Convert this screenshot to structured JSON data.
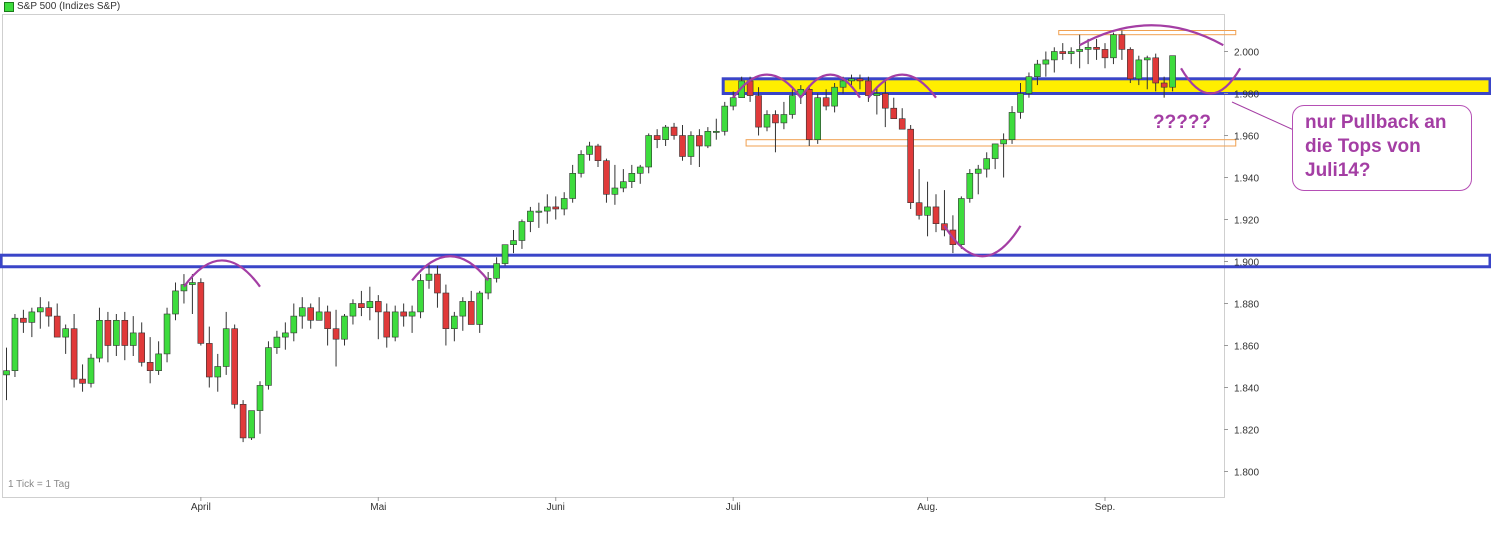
{
  "header": {
    "legend_label": "S&P 500 (Indizes S&P)"
  },
  "footer": {
    "tick_note": "1 Tick = 1 Tag"
  },
  "annotations": {
    "callout_text": "nur Pullback an die Tops von Juli14?",
    "question_marks": "?????"
  },
  "colors": {
    "up_candle": "#3ddc3d",
    "down_candle": "#e03a3a",
    "support_box": "#3a45c8",
    "highlight_fill": "#ffee00",
    "pattern_arc": "#a43ea4",
    "thin_zone": "#f0a050"
  },
  "chart_data": {
    "type": "candlestick",
    "title": "S&P 500 (Indizes S&P)",
    "ylim": [
      1795,
      2015
    ],
    "grid": false,
    "y_ticks": [
      {
        "value": 2000,
        "label": "2.000"
      },
      {
        "value": 1980,
        "label": "1.980"
      },
      {
        "value": 1960,
        "label": "1.960"
      },
      {
        "value": 1940,
        "label": "1.940"
      },
      {
        "value": 1920,
        "label": "1.920"
      },
      {
        "value": 1900,
        "label": "1.900"
      },
      {
        "value": 1880,
        "label": "1.880"
      },
      {
        "value": 1860,
        "label": "1.860"
      },
      {
        "value": 1840,
        "label": "1.840"
      },
      {
        "value": 1820,
        "label": "1.820"
      },
      {
        "value": 1800,
        "label": "1.800"
      }
    ],
    "x_ticks": [
      {
        "index": 23,
        "label": "April"
      },
      {
        "index": 44,
        "label": "Mai"
      },
      {
        "index": 65,
        "label": "Juni"
      },
      {
        "index": 86,
        "label": "Juli"
      },
      {
        "index": 109,
        "label": "Aug."
      },
      {
        "index": 130,
        "label": "Sep."
      }
    ],
    "candles": [
      [
        1846,
        1859,
        1834,
        1848
      ],
      [
        1848,
        1875,
        1845,
        1873
      ],
      [
        1873,
        1877,
        1866,
        1871
      ],
      [
        1871,
        1878,
        1864,
        1876
      ],
      [
        1876,
        1883,
        1868,
        1878
      ],
      [
        1878,
        1881,
        1869,
        1874
      ],
      [
        1874,
        1880,
        1866,
        1864
      ],
      [
        1864,
        1870,
        1856,
        1868
      ],
      [
        1868,
        1875,
        1840,
        1844
      ],
      [
        1844,
        1851,
        1838,
        1842
      ],
      [
        1842,
        1856,
        1840,
        1854
      ],
      [
        1854,
        1878,
        1852,
        1872
      ],
      [
        1872,
        1876,
        1852,
        1860
      ],
      [
        1860,
        1875,
        1855,
        1872
      ],
      [
        1872,
        1876,
        1853,
        1860
      ],
      [
        1860,
        1874,
        1855,
        1866
      ],
      [
        1866,
        1871,
        1850,
        1852
      ],
      [
        1852,
        1864,
        1842,
        1848
      ],
      [
        1848,
        1862,
        1846,
        1856
      ],
      [
        1856,
        1878,
        1852,
        1875
      ],
      [
        1875,
        1890,
        1872,
        1886
      ],
      [
        1886,
        1894,
        1880,
        1889
      ],
      [
        1889,
        1894,
        1875,
        1890
      ],
      [
        1890,
        1892,
        1860,
        1861
      ],
      [
        1861,
        1869,
        1840,
        1845
      ],
      [
        1845,
        1856,
        1838,
        1850
      ],
      [
        1850,
        1876,
        1846,
        1868
      ],
      [
        1868,
        1870,
        1830,
        1832
      ],
      [
        1832,
        1834,
        1814,
        1816
      ],
      [
        1816,
        1828,
        1815,
        1829
      ],
      [
        1829,
        1843,
        1818,
        1841
      ],
      [
        1841,
        1862,
        1839,
        1859
      ],
      [
        1859,
        1867,
        1856,
        1864
      ],
      [
        1864,
        1871,
        1858,
        1866
      ],
      [
        1866,
        1880,
        1862,
        1874
      ],
      [
        1874,
        1883,
        1868,
        1878
      ],
      [
        1878,
        1880,
        1868,
        1872
      ],
      [
        1872,
        1883,
        1872,
        1876
      ],
      [
        1876,
        1879,
        1860,
        1868
      ],
      [
        1868,
        1877,
        1850,
        1863
      ],
      [
        1863,
        1875,
        1860,
        1874
      ],
      [
        1874,
        1882,
        1870,
        1880
      ],
      [
        1880,
        1886,
        1874,
        1878
      ],
      [
        1878,
        1888,
        1872,
        1881
      ],
      [
        1881,
        1884,
        1863,
        1876
      ],
      [
        1876,
        1880,
        1859,
        1864
      ],
      [
        1864,
        1879,
        1862,
        1876
      ],
      [
        1876,
        1880,
        1869,
        1874
      ],
      [
        1874,
        1879,
        1866,
        1876
      ],
      [
        1876,
        1894,
        1873,
        1891
      ],
      [
        1891,
        1899,
        1887,
        1894
      ],
      [
        1894,
        1898,
        1878,
        1885
      ],
      [
        1885,
        1889,
        1860,
        1868
      ],
      [
        1868,
        1876,
        1862,
        1874
      ],
      [
        1874,
        1883,
        1867,
        1881
      ],
      [
        1881,
        1886,
        1870,
        1870
      ],
      [
        1870,
        1886,
        1866,
        1885
      ],
      [
        1885,
        1895,
        1882,
        1892
      ],
      [
        1892,
        1902,
        1890,
        1899
      ],
      [
        1899,
        1908,
        1898,
        1908
      ],
      [
        1908,
        1915,
        1904,
        1910
      ],
      [
        1910,
        1920,
        1906,
        1919
      ],
      [
        1919,
        1926,
        1914,
        1924
      ],
      [
        1924,
        1928,
        1916,
        1924
      ],
      [
        1924,
        1932,
        1918,
        1926
      ],
      [
        1926,
        1931,
        1920,
        1925
      ],
      [
        1925,
        1933,
        1922,
        1930
      ],
      [
        1930,
        1946,
        1928,
        1942
      ],
      [
        1942,
        1953,
        1940,
        1951
      ],
      [
        1951,
        1957,
        1948,
        1955
      ],
      [
        1955,
        1956,
        1945,
        1948
      ],
      [
        1948,
        1949,
        1928,
        1932
      ],
      [
        1932,
        1946,
        1927,
        1935
      ],
      [
        1935,
        1944,
        1933,
        1938
      ],
      [
        1938,
        1946,
        1935,
        1942
      ],
      [
        1942,
        1946,
        1937,
        1945
      ],
      [
        1945,
        1961,
        1942,
        1960
      ],
      [
        1960,
        1963,
        1954,
        1958
      ],
      [
        1958,
        1965,
        1955,
        1964
      ],
      [
        1964,
        1966,
        1958,
        1960
      ],
      [
        1960,
        1965,
        1948,
        1950
      ],
      [
        1950,
        1962,
        1946,
        1960
      ],
      [
        1960,
        1963,
        1945,
        1955
      ],
      [
        1955,
        1964,
        1954,
        1962
      ],
      [
        1962,
        1968,
        1958,
        1962
      ],
      [
        1962,
        1976,
        1960,
        1974
      ],
      [
        1974,
        1981,
        1972,
        1978
      ],
      [
        1978,
        1988,
        1978,
        1986
      ],
      [
        1986,
        1988,
        1976,
        1979
      ],
      [
        1979,
        1983,
        1960,
        1964
      ],
      [
        1964,
        1972,
        1962,
        1970
      ],
      [
        1970,
        1972,
        1952,
        1966
      ],
      [
        1966,
        1976,
        1963,
        1970
      ],
      [
        1970,
        1982,
        1968,
        1979
      ],
      [
        1979,
        1984,
        1975,
        1982
      ],
      [
        1982,
        1984,
        1955,
        1958
      ],
      [
        1958,
        1980,
        1956,
        1978
      ],
      [
        1978,
        1982,
        1972,
        1974
      ],
      [
        1974,
        1985,
        1971,
        1983
      ],
      [
        1983,
        1988,
        1980,
        1986
      ],
      [
        1986,
        1989,
        1984,
        1987
      ],
      [
        1987,
        1989,
        1982,
        1986
      ],
      [
        1986,
        1988,
        1976,
        1979
      ],
      [
        1979,
        1983,
        1970,
        1980
      ],
      [
        1980,
        1986,
        1964,
        1973
      ],
      [
        1973,
        1978,
        1968,
        1968
      ],
      [
        1968,
        1973,
        1963,
        1963
      ],
      [
        1963,
        1965,
        1925,
        1928
      ],
      [
        1928,
        1944,
        1920,
        1922
      ],
      [
        1922,
        1938,
        1912,
        1926
      ],
      [
        1926,
        1932,
        1914,
        1918
      ],
      [
        1918,
        1934,
        1912,
        1915
      ],
      [
        1915,
        1922,
        1904,
        1908
      ],
      [
        1908,
        1931,
        1906,
        1930
      ],
      [
        1930,
        1944,
        1928,
        1942
      ],
      [
        1942,
        1946,
        1932,
        1944
      ],
      [
        1944,
        1952,
        1940,
        1949
      ],
      [
        1949,
        1956,
        1944,
        1956
      ],
      [
        1956,
        1961,
        1940,
        1958
      ],
      [
        1958,
        1974,
        1956,
        1971
      ],
      [
        1971,
        1985,
        1968,
        1980
      ],
      [
        1980,
        1990,
        1978,
        1988
      ],
      [
        1988,
        1996,
        1984,
        1994
      ],
      [
        1994,
        2000,
        1988,
        1996
      ],
      [
        1996,
        2002,
        1990,
        2000
      ],
      [
        2000,
        2004,
        1996,
        1999
      ],
      [
        1999,
        2002,
        1994,
        2000
      ],
      [
        2000,
        2008,
        1992,
        2001
      ],
      [
        2001,
        2006,
        1994,
        2002
      ],
      [
        2002,
        2006,
        1996,
        2001
      ],
      [
        2001,
        2004,
        1992,
        1997
      ],
      [
        1997,
        2009,
        1994,
        2008
      ],
      [
        2008,
        2010,
        1996,
        2001
      ],
      [
        2001,
        2002,
        1985,
        1987
      ],
      [
        1987,
        1998,
        1984,
        1996
      ],
      [
        1996,
        1998,
        1982,
        1997
      ],
      [
        1997,
        1999,
        1981,
        1985
      ],
      [
        1985,
        1988,
        1978,
        1983
      ],
      [
        1983,
        1998,
        1981,
        1998
      ]
    ],
    "series_annotations": [
      {
        "type": "zone",
        "label": "highlight",
        "y": [
          1980,
          1987
        ],
        "from_index": 86
      },
      {
        "type": "zone",
        "label": "support",
        "y": [
          1897.5,
          1903
        ],
        "from_index": 0
      },
      {
        "type": "zone",
        "label": "thin",
        "y": [
          1955,
          1958
        ],
        "from_index": 88,
        "to_index": 145
      },
      {
        "type": "zone",
        "label": "thin",
        "y": [
          2008,
          2010
        ],
        "from_index": 125,
        "to_index": 145
      }
    ]
  }
}
